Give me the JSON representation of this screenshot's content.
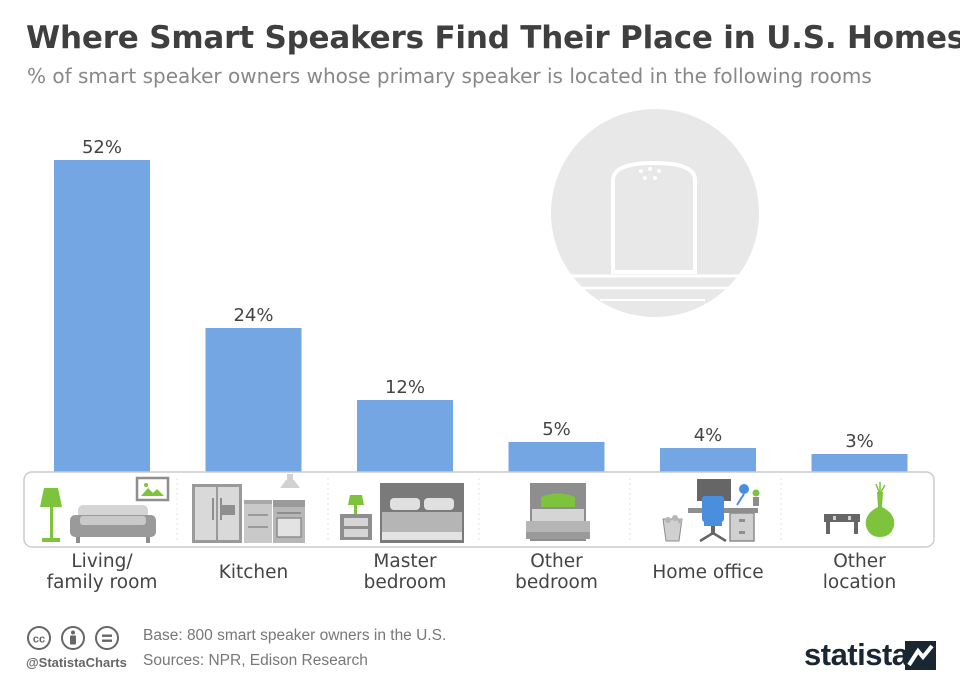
{
  "header": {
    "title": "Where Smart Speakers Find Their Place in U.S. Homes",
    "subtitle": "% of smart speaker owners whose primary speaker is located in the following rooms"
  },
  "chart_data": {
    "type": "bar",
    "title": "Where Smart Speakers Find Their Place in U.S. Homes",
    "subtitle": "% of smart speaker owners whose primary speaker is located in the following rooms",
    "categories": [
      [
        "Living/",
        "family room"
      ],
      [
        "Kitchen"
      ],
      [
        "Master",
        "bedroom"
      ],
      [
        "Other",
        "bedroom"
      ],
      [
        "Home office"
      ],
      [
        "Other",
        "location"
      ]
    ],
    "values": [
      52,
      24,
      12,
      5,
      4,
      3
    ],
    "value_labels": [
      "52%",
      "24%",
      "12%",
      "5%",
      "4%",
      "3%"
    ],
    "ylim": [
      0,
      55
    ],
    "bar_color": "#74a6e3",
    "xlabel": "",
    "ylabel": ""
  },
  "icons": [
    "living-room-icon",
    "kitchen-icon",
    "master-bedroom-icon",
    "other-bedroom-icon",
    "home-office-icon",
    "other-location-icon",
    "smart-speaker-icon"
  ],
  "footer": {
    "base": "Base: 800 smart speaker owners in the U.S.",
    "sources": "Sources: NPR, Edison Research",
    "handle": "@StatistaCharts",
    "brand": "statista"
  },
  "colors": {
    "title": "#3f3f3f",
    "subtitle": "#888888",
    "bar": "#74a6e3",
    "icon_gray": "#8e8e8e",
    "icon_light": "#d7d7d7",
    "accent_green": "#7dc33b",
    "brand": "#1a2733"
  }
}
